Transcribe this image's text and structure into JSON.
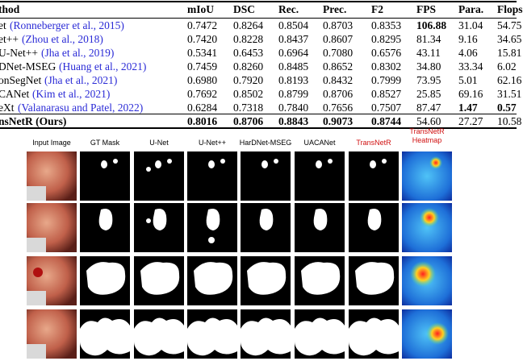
{
  "table": {
    "header": [
      "thod",
      "mIoU",
      "DSC",
      "Rec.",
      "Prec.",
      "F2",
      "FPS",
      "Para.",
      "Flops"
    ],
    "rows": [
      {
        "name": "et",
        "cite": "(Ronneberger et al., 2015)",
        "values": [
          "0.7472",
          "0.8264",
          "0.8504",
          "0.8703",
          "0.8353",
          "106.88",
          "31.04",
          "54.75"
        ],
        "bold": [
          5
        ]
      },
      {
        "name": "et++",
        "cite": "(Zhou et al., 2018)",
        "values": [
          "0.7420",
          "0.8228",
          "0.8437",
          "0.8607",
          "0.8295",
          "81.34",
          "9.16",
          "34.65"
        ],
        "bold": []
      },
      {
        "name": "U-Net++",
        "cite": "(Jha et al., 2019)",
        "values": [
          "0.5341",
          "0.6453",
          "0.6964",
          "0.7080",
          "0.6576",
          "43.11",
          "4.06",
          "15.81"
        ],
        "bold": []
      },
      {
        "name": "DNet-MSEG",
        "cite": "(Huang et al., 2021)",
        "values": [
          "0.7459",
          "0.8260",
          "0.8485",
          "0.8652",
          "0.8302",
          "34.80",
          "33.34",
          "6.02"
        ],
        "bold": []
      },
      {
        "name": "onSegNet",
        "cite": "(Jha et al., 2021)",
        "values": [
          "0.6980",
          "0.7920",
          "0.8193",
          "0.8432",
          "0.7999",
          "73.95",
          "5.01",
          "62.16"
        ],
        "bold": []
      },
      {
        "name": "CANet",
        "cite": "(Kim et al., 2021)",
        "values": [
          "0.7692",
          "0.8502",
          "0.8799",
          "0.8706",
          "0.8527",
          "25.85",
          "69.16",
          "31.51"
        ],
        "bold": []
      },
      {
        "name": "eXt",
        "cite": "(Valanarasu and Patel, 2022)",
        "values": [
          "0.6284",
          "0.7318",
          "0.7840",
          "0.7656",
          "0.7507",
          "87.47",
          "1.47",
          "0.57"
        ],
        "bold": [
          6,
          7
        ]
      },
      {
        "name": "nsNetR (Ours)",
        "values": [
          "0.8016",
          "0.8706",
          "0.8843",
          "0.9073",
          "0.8744",
          "54.60",
          "27.27",
          "10.58"
        ],
        "bold": [
          0,
          1,
          2,
          3,
          4
        ],
        "bold_name": true
      }
    ]
  },
  "figure": {
    "columns": [
      "Input Image",
      "GT Mask",
      "U-Net",
      "U-Net++",
      "HarDNet-MSEG",
      "UACANet",
      "TransNetR",
      "TransNetR Heatmap"
    ],
    "highlight_columns": [
      6,
      7
    ]
  }
}
